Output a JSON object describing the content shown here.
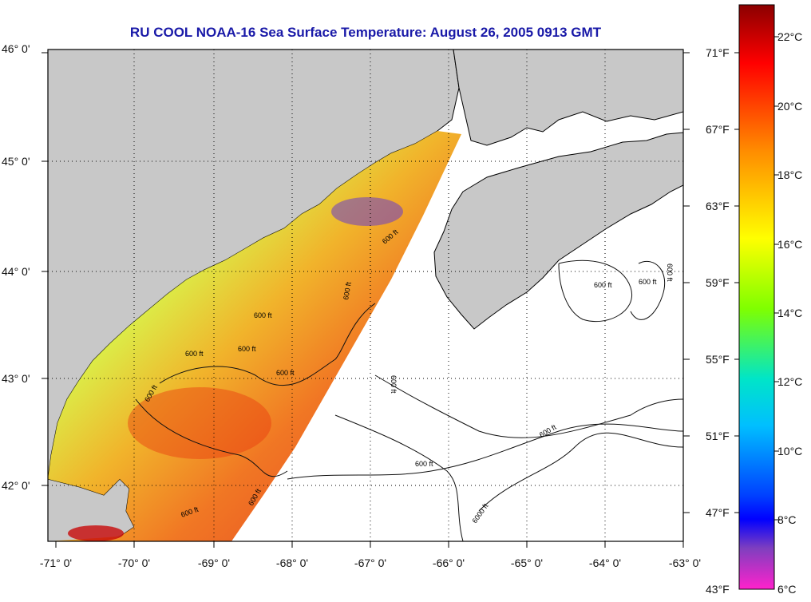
{
  "title": "RU COOL  NOAA-16  Sea Surface Temperature:  August 26, 2005 0913 GMT",
  "map": {
    "latitude_labels": [
      "46° 0'",
      "45° 0'",
      "44° 0'",
      "43° 0'",
      "42° 0'"
    ],
    "longitude_labels": [
      "-71° 0'",
      "-70° 0'",
      "-69° 0'",
      "-68° 0'",
      "-67° 0'",
      "-66° 0'",
      "-65° 0'",
      "-64° 0'",
      "-63° 0'"
    ],
    "contour_label": "600 ft",
    "deep_contour_label": "6000 ft",
    "colors": {
      "land": "#c8c8c8",
      "water_no_data": "#ffffff",
      "grid": "#000000"
    }
  },
  "colorbar": {
    "fahrenheit_labels": [
      "71°F",
      "67°F",
      "63°F",
      "59°F",
      "55°F",
      "51°F",
      "47°F",
      "43°F"
    ],
    "celsius_labels": [
      "22°C",
      "20°C",
      "18°C",
      "16°C",
      "14°C",
      "12°C",
      "10°C",
      "8°C",
      "6°C"
    ],
    "gradient_stops": [
      "#8b0000",
      "#ff0000",
      "#ff8c00",
      "#ffff00",
      "#7fff00",
      "#00e5c8",
      "#00bfff",
      "#0040ff",
      "#0000ff",
      "#7f3fbf",
      "#ff22cc"
    ]
  }
}
